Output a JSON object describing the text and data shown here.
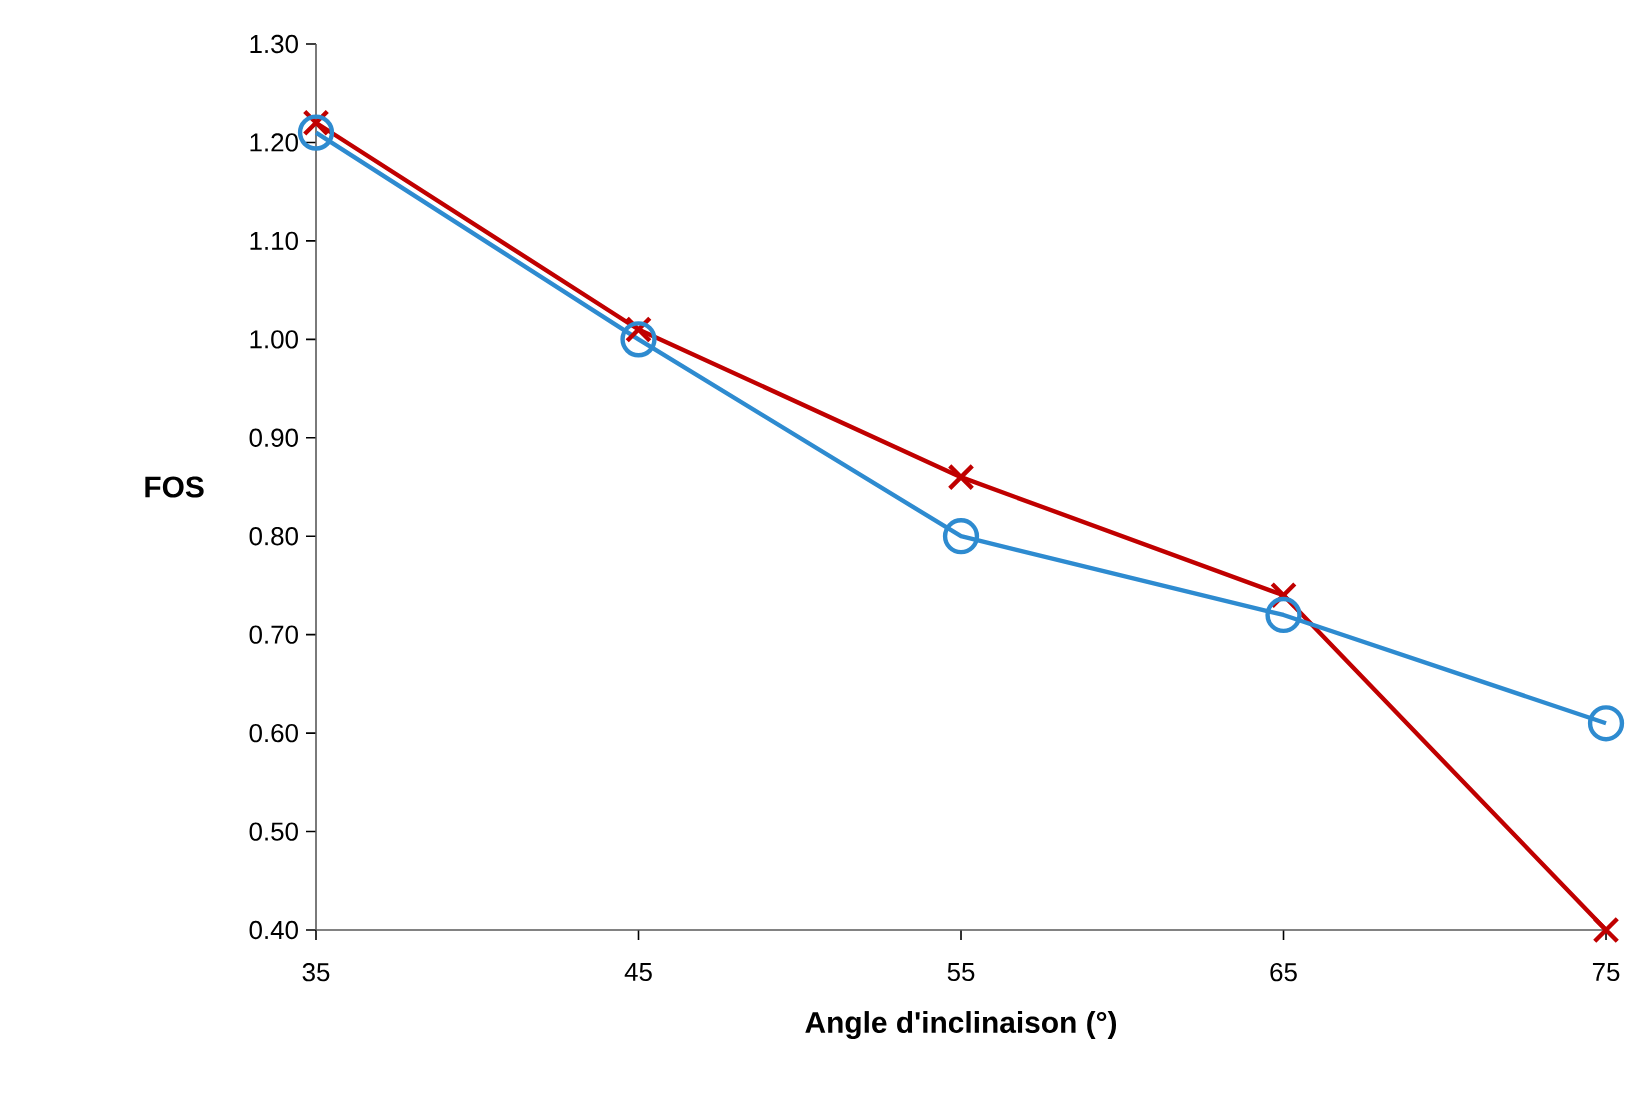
{
  "chart_data": {
    "type": "line",
    "xlabel": "Angle d'inclinaison (°)",
    "ylabel": "FOS",
    "x": [
      35,
      45,
      55,
      65,
      75
    ],
    "series": [
      {
        "color": "#c00000",
        "marker": "cross",
        "values": [
          1.22,
          1.01,
          0.86,
          0.74,
          0.4
        ]
      },
      {
        "color": "#2e8bd0",
        "marker": "circle",
        "values": [
          1.21,
          1.0,
          0.8,
          0.72,
          0.61
        ]
      }
    ],
    "xlim": [
      35,
      75
    ],
    "xticks": [
      35,
      45,
      55,
      65,
      75
    ],
    "ylim": [
      0.4,
      1.3
    ],
    "yticks": [
      {
        "value": 0.4,
        "label": "0.40"
      },
      {
        "value": 0.5,
        "label": "0.50"
      },
      {
        "value": 0.6,
        "label": "0.60"
      },
      {
        "value": 0.7,
        "label": "0.70"
      },
      {
        "value": 0.8,
        "label": "0.80"
      },
      {
        "value": 0.9,
        "label": "0.90"
      },
      {
        "value": 1.0,
        "label": "1.00"
      },
      {
        "value": 1.1,
        "label": "1.10"
      },
      {
        "value": 1.2,
        "label": "1.20"
      },
      {
        "value": 1.3,
        "label": "1.30"
      }
    ]
  }
}
